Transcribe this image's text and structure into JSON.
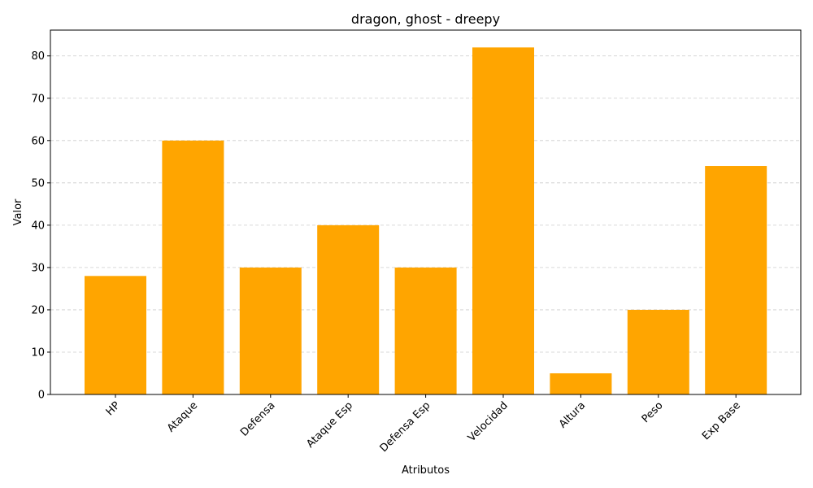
{
  "chart_data": {
    "type": "bar",
    "title": "dragon, ghost - dreepy",
    "xlabel": "Atributos",
    "ylabel": "Valor",
    "categories": [
      "HP",
      "Ataque",
      "Defensa",
      "Ataque Esp",
      "Defensa Esp",
      "Velocidad",
      "Altura",
      "Peso",
      "Exp Base"
    ],
    "values": [
      28,
      60,
      30,
      40,
      30,
      82,
      5,
      20,
      54
    ],
    "ylim": [
      0,
      86.1
    ],
    "yticks": [
      0,
      10,
      20,
      30,
      40,
      50,
      60,
      70,
      80
    ],
    "bar_color": "#FFA500",
    "grid": "y-axis, dashed",
    "legend": "none",
    "xtick_rotation": "45 degrees"
  }
}
